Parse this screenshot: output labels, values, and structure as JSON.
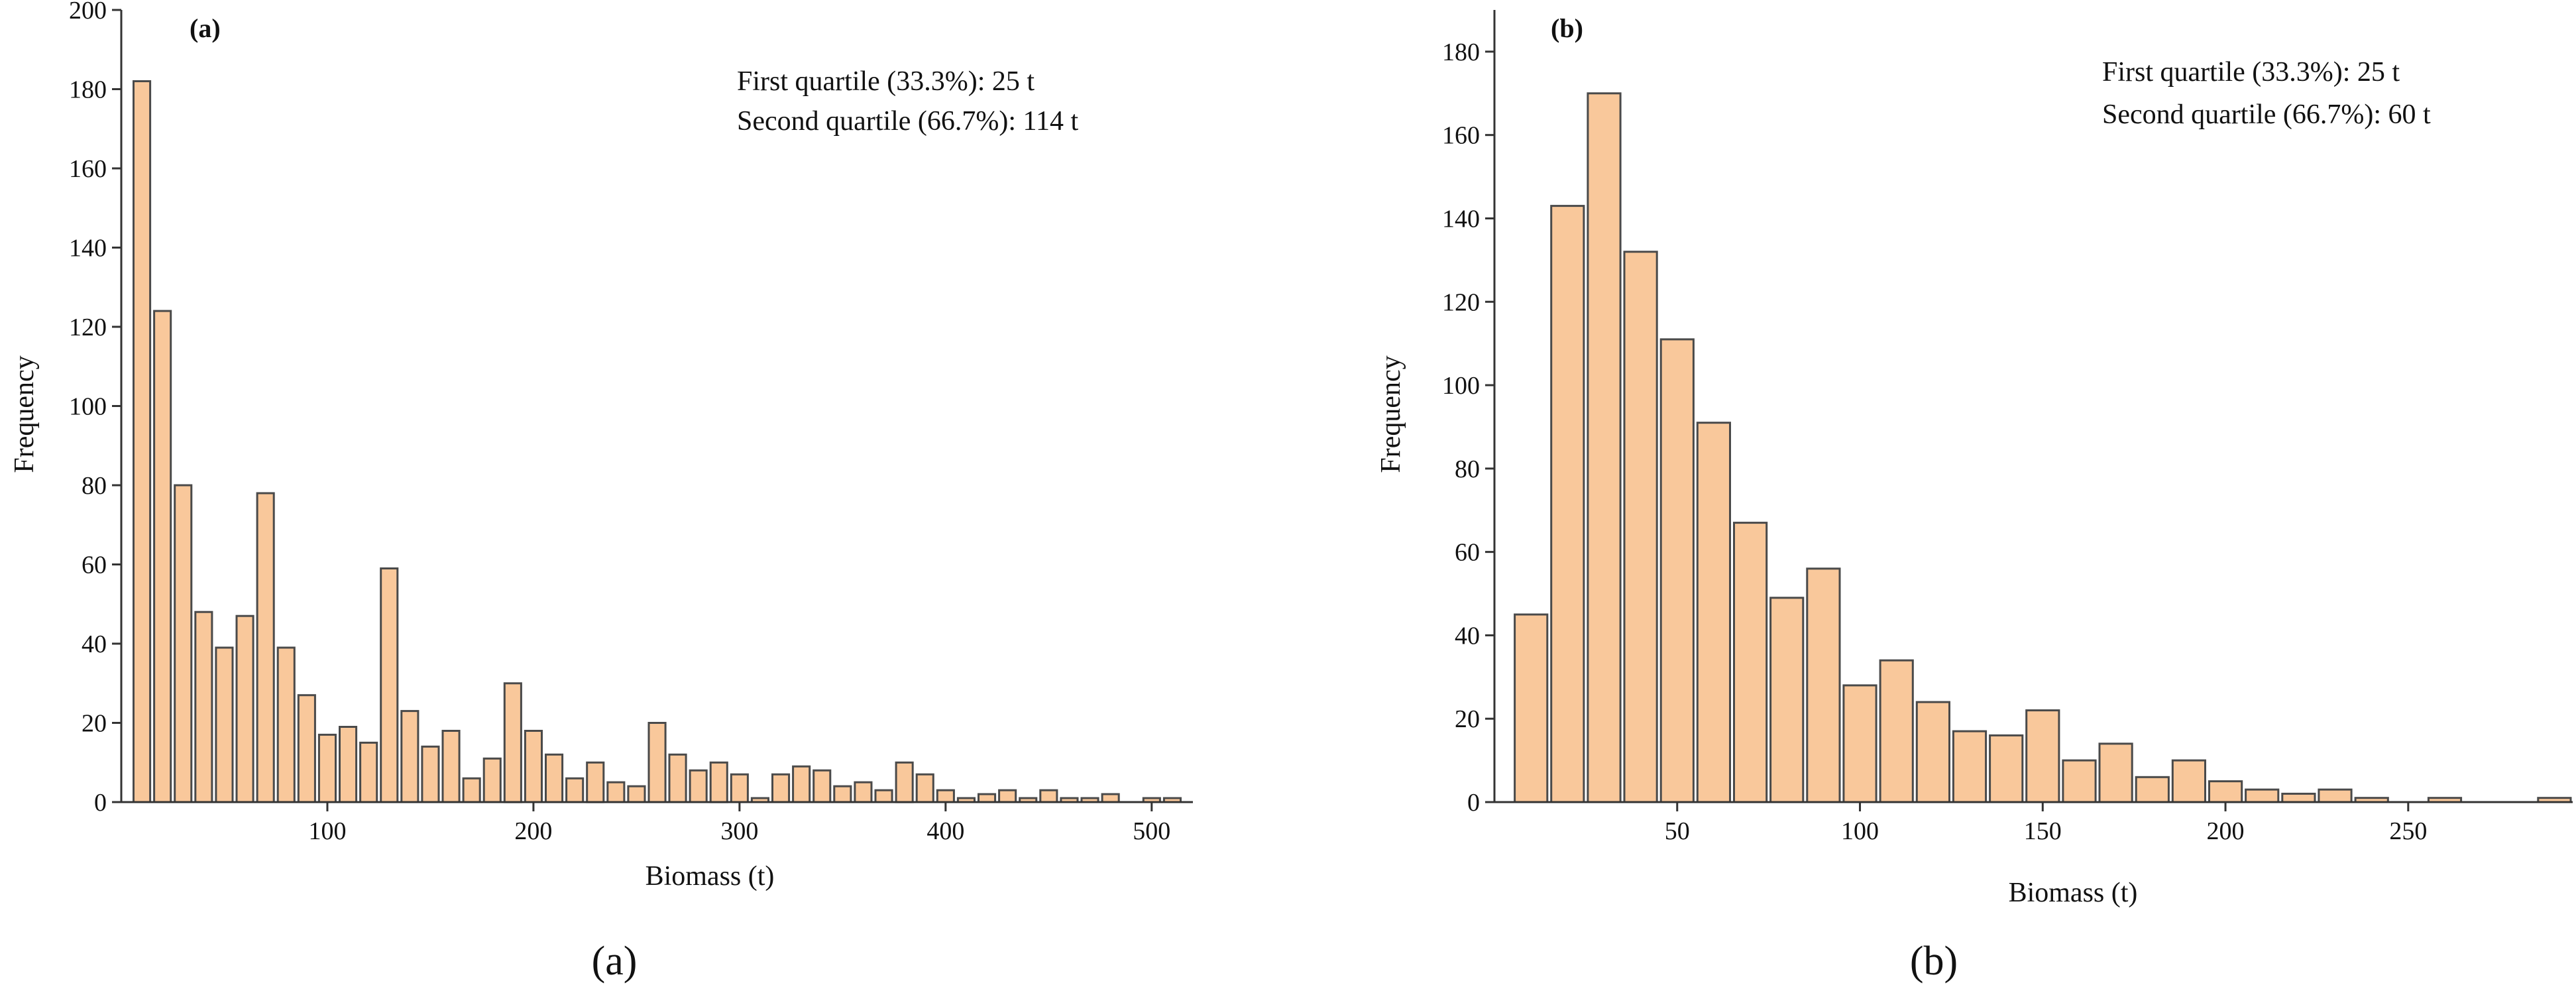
{
  "chart_data": [
    {
      "type": "bar",
      "panel": "(a)",
      "caption": "(a)",
      "xlabel": "Biomass (t)",
      "ylabel": "Frequency",
      "annotations": [
        "First quartile (33.3%): 25 t",
        "Second quartile (66.7%): 114 t"
      ],
      "xlim": [
        0,
        520
      ],
      "ylim": [
        0,
        200
      ],
      "xticks": [
        100,
        200,
        300,
        400,
        500
      ],
      "yticks": [
        0,
        20,
        40,
        60,
        80,
        100,
        120,
        140,
        160,
        180,
        200
      ],
      "bin_width": 10,
      "x": [
        10,
        20,
        30,
        40,
        50,
        60,
        70,
        80,
        90,
        100,
        110,
        120,
        130,
        140,
        150,
        160,
        170,
        180,
        190,
        200,
        210,
        220,
        230,
        240,
        250,
        260,
        270,
        280,
        290,
        300,
        310,
        320,
        330,
        340,
        350,
        360,
        370,
        380,
        390,
        400,
        410,
        420,
        430,
        440,
        450,
        460,
        470,
        480,
        490,
        500,
        510
      ],
      "values": [
        182,
        124,
        80,
        48,
        39,
        47,
        78,
        39,
        27,
        17,
        19,
        15,
        59,
        23,
        14,
        18,
        6,
        11,
        30,
        18,
        12,
        6,
        10,
        5,
        4,
        20,
        12,
        8,
        10,
        7,
        1,
        7,
        9,
        8,
        4,
        5,
        3,
        10,
        7,
        3,
        1,
        2,
        3,
        1,
        3,
        1,
        1,
        2,
        0,
        1,
        1
      ]
    },
    {
      "type": "bar",
      "panel": "(b)",
      "caption": "(b)",
      "xlabel": "Biomass (t)",
      "ylabel": "Frequency",
      "annotations": [
        "First quartile (33.3%): 25 t",
        "Second quartile (66.7%): 60 t"
      ],
      "xlim": [
        0,
        295
      ],
      "ylim": [
        0,
        190
      ],
      "xticks": [
        50,
        100,
        150,
        200,
        250
      ],
      "yticks": [
        0,
        20,
        40,
        60,
        80,
        100,
        120,
        140,
        160,
        180
      ],
      "bin_width": 10,
      "x": [
        10,
        20,
        30,
        40,
        50,
        60,
        70,
        80,
        90,
        100,
        110,
        120,
        130,
        140,
        150,
        160,
        170,
        180,
        190,
        200,
        210,
        220,
        230,
        240,
        250,
        260,
        270,
        280,
        290
      ],
      "values": [
        45,
        143,
        170,
        132,
        111,
        91,
        67,
        49,
        56,
        28,
        34,
        24,
        17,
        16,
        22,
        10,
        14,
        6,
        10,
        5,
        3,
        2,
        3,
        1,
        0,
        1,
        0,
        0,
        1
      ]
    }
  ]
}
